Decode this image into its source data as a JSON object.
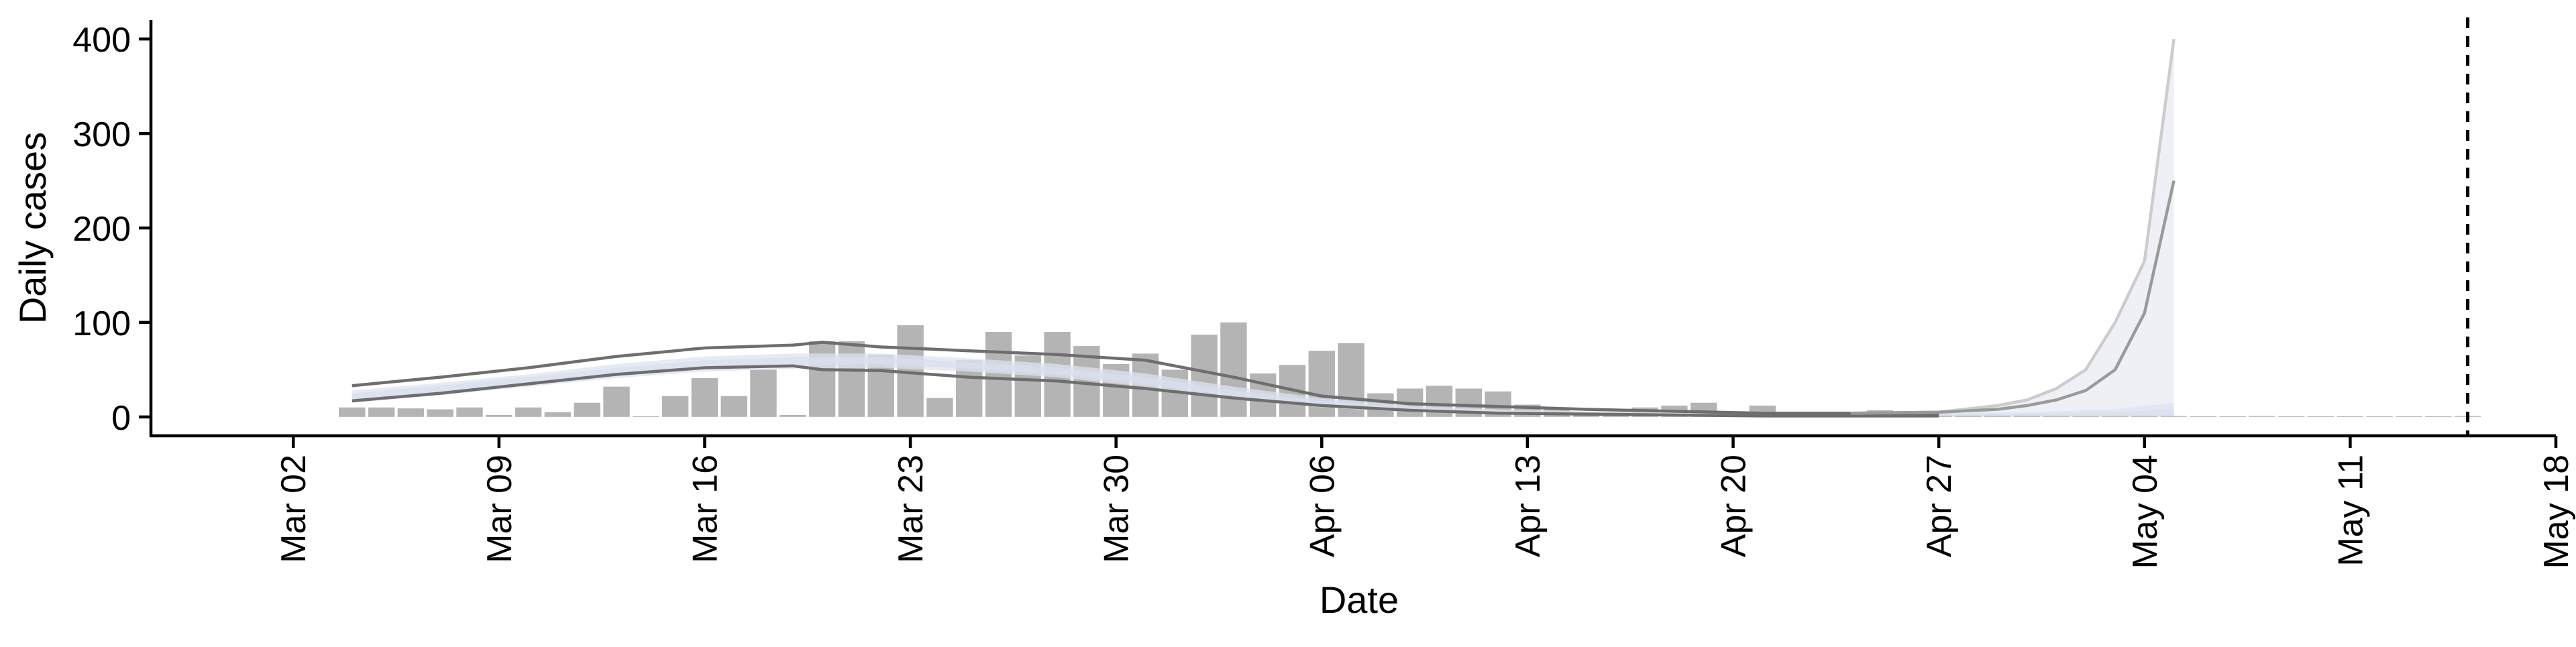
{
  "chart_data": {
    "type": "bar",
    "xlabel": "Date",
    "ylabel": "Daily cases",
    "ylim": [
      -20,
      420
    ],
    "y_ticks": [
      0,
      100,
      200,
      300,
      400
    ],
    "x_range": [
      "2020-02-27",
      "2020-05-18"
    ],
    "x_ticks": [
      {
        "date": "2020-03-02",
        "label": "Mar 02"
      },
      {
        "date": "2020-03-09",
        "label": "Mar 09"
      },
      {
        "date": "2020-03-16",
        "label": "Mar 16"
      },
      {
        "date": "2020-03-23",
        "label": "Mar 23"
      },
      {
        "date": "2020-03-30",
        "label": "Mar 30"
      },
      {
        "date": "2020-04-06",
        "label": "Apr 06"
      },
      {
        "date": "2020-04-13",
        "label": "Apr 13"
      },
      {
        "date": "2020-04-20",
        "label": "Apr 20"
      },
      {
        "date": "2020-04-27",
        "label": "Apr 27"
      },
      {
        "date": "2020-05-04",
        "label": "May 04"
      },
      {
        "date": "2020-05-11",
        "label": "May 11"
      },
      {
        "date": "2020-05-18",
        "label": "May 18"
      }
    ],
    "bars": {
      "color": "#b4b4b4",
      "x": [
        "2020-03-04",
        "2020-03-05",
        "2020-03-06",
        "2020-03-07",
        "2020-03-08",
        "2020-03-09",
        "2020-03-10",
        "2020-03-11",
        "2020-03-12",
        "2020-03-13",
        "2020-03-14",
        "2020-03-15",
        "2020-03-16",
        "2020-03-17",
        "2020-03-18",
        "2020-03-19",
        "2020-03-20",
        "2020-03-21",
        "2020-03-22",
        "2020-03-23",
        "2020-03-24",
        "2020-03-25",
        "2020-03-26",
        "2020-03-27",
        "2020-03-28",
        "2020-03-29",
        "2020-03-30",
        "2020-03-31",
        "2020-04-01",
        "2020-04-02",
        "2020-04-03",
        "2020-04-04",
        "2020-04-05",
        "2020-04-06",
        "2020-04-07",
        "2020-04-08",
        "2020-04-09",
        "2020-04-10",
        "2020-04-11",
        "2020-04-12",
        "2020-04-13",
        "2020-04-14",
        "2020-04-15",
        "2020-04-16",
        "2020-04-17",
        "2020-04-18",
        "2020-04-19",
        "2020-04-20",
        "2020-04-21",
        "2020-04-22",
        "2020-04-23",
        "2020-04-24",
        "2020-04-25",
        "2020-04-26",
        "2020-04-27",
        "2020-04-28",
        "2020-04-29",
        "2020-04-30",
        "2020-05-01",
        "2020-05-02",
        "2020-05-03",
        "2020-05-04",
        "2020-05-05",
        "2020-05-06",
        "2020-05-07",
        "2020-05-08",
        "2020-05-09",
        "2020-05-10",
        "2020-05-11",
        "2020-05-12",
        "2020-05-13",
        "2020-05-14",
        "2020-05-15"
      ],
      "values": [
        10,
        10,
        9,
        8,
        10,
        2,
        10,
        5,
        15,
        32,
        0,
        22,
        41,
        22,
        50,
        2,
        80,
        80,
        66,
        97,
        20,
        60,
        90,
        65,
        90,
        75,
        56,
        67,
        50,
        87,
        100,
        46,
        55,
        70,
        78,
        25,
        30,
        33,
        30,
        27,
        13,
        10,
        5,
        5,
        10,
        12,
        15,
        5,
        12,
        5,
        5,
        5,
        7,
        3,
        3,
        2,
        2,
        3,
        1,
        1,
        1,
        1,
        1,
        0,
        0,
        1,
        0,
        0,
        0,
        0,
        0,
        0,
        1
      ]
    },
    "bands": [
      {
        "color": "#c9d2e6",
        "x": [
          "2020-03-04",
          "2020-03-07",
          "2020-03-10",
          "2020-03-13",
          "2020-03-16",
          "2020-03-19",
          "2020-03-22",
          "2020-03-25",
          "2020-03-28",
          "2020-03-31",
          "2020-04-03",
          "2020-04-06",
          "2020-04-09",
          "2020-04-12",
          "2020-04-15",
          "2020-04-18",
          "2020-04-21",
          "2020-04-24",
          "2020-04-27",
          "2020-04-30",
          "2020-05-03",
          "2020-05-05"
        ],
        "upper": [
          25,
          33,
          42,
          52,
          60,
          63,
          63,
          58,
          52,
          42,
          28,
          17,
          10,
          7,
          5,
          4,
          3,
          3,
          3,
          3,
          5,
          8
        ],
        "lower": [
          18,
          26,
          35,
          44,
          52,
          55,
          56,
          51,
          45,
          35,
          22,
          12,
          7,
          4,
          3,
          2,
          2,
          1,
          1,
          1,
          1,
          1
        ]
      },
      {
        "color": "#dde3ef",
        "x": [
          "2020-03-04",
          "2020-03-07",
          "2020-03-10",
          "2020-03-13",
          "2020-03-16",
          "2020-03-19",
          "2020-03-22",
          "2020-03-25",
          "2020-03-28",
          "2020-03-31",
          "2020-04-03",
          "2020-04-06",
          "2020-04-09",
          "2020-04-12",
          "2020-04-15",
          "2020-04-18",
          "2020-04-21",
          "2020-04-24",
          "2020-04-27",
          "2020-04-30",
          "2020-05-03",
          "2020-05-05"
        ],
        "upper": [
          28,
          36,
          45,
          56,
          64,
          67,
          67,
          62,
          56,
          46,
          32,
          20,
          12,
          8,
          6,
          5,
          4,
          4,
          4,
          5,
          8,
          15
        ],
        "lower": [
          15,
          23,
          32,
          41,
          48,
          51,
          52,
          48,
          42,
          32,
          19,
          10,
          5,
          3,
          2,
          1,
          1,
          1,
          1,
          1,
          1,
          1
        ]
      }
    ],
    "forecast_band": {
      "color": "#eef0f6",
      "x": [
        "2020-04-27",
        "2020-04-28",
        "2020-04-29",
        "2020-04-30",
        "2020-05-01",
        "2020-05-02",
        "2020-05-03",
        "2020-05-04",
        "2020-05-05"
      ],
      "upper": [
        4,
        8,
        12,
        18,
        30,
        50,
        100,
        165,
        400
      ],
      "lower": [
        0,
        0,
        0,
        0,
        0,
        0,
        0,
        0,
        0
      ]
    },
    "lines": [
      {
        "color": "#6e6e6e",
        "x": [
          "2020-03-04",
          "2020-03-07",
          "2020-03-10",
          "2020-03-13",
          "2020-03-16",
          "2020-03-19",
          "2020-03-20",
          "2020-03-22",
          "2020-03-25",
          "2020-03-28",
          "2020-03-31",
          "2020-04-03",
          "2020-04-06",
          "2020-04-09",
          "2020-04-12",
          "2020-04-15",
          "2020-04-18",
          "2020-04-21",
          "2020-04-24",
          "2020-04-27"
        ],
        "values": [
          33,
          42,
          52,
          64,
          73,
          76,
          79,
          74,
          70,
          66,
          60,
          42,
          22,
          14,
          11,
          8,
          6,
          4,
          4,
          4
        ]
      },
      {
        "color": "#6e6e6e",
        "x": [
          "2020-03-04",
          "2020-03-07",
          "2020-03-10",
          "2020-03-13",
          "2020-03-16",
          "2020-03-19",
          "2020-03-20",
          "2020-03-22",
          "2020-03-25",
          "2020-03-28",
          "2020-03-31",
          "2020-04-03",
          "2020-04-06",
          "2020-04-09",
          "2020-04-12",
          "2020-04-15",
          "2020-04-18",
          "2020-04-21",
          "2020-04-24",
          "2020-04-27"
        ],
        "values": [
          17,
          25,
          35,
          45,
          52,
          54,
          50,
          49,
          42,
          38,
          30,
          20,
          12,
          7,
          4,
          3,
          2,
          1,
          1,
          1
        ]
      },
      {
        "color": "#cccccc",
        "x": [
          "2020-04-24",
          "2020-04-27",
          "2020-04-29",
          "2020-04-30",
          "2020-05-01",
          "2020-05-02",
          "2020-05-03",
          "2020-05-04",
          "2020-05-05"
        ],
        "values": [
          4,
          5,
          12,
          18,
          30,
          50,
          100,
          165,
          400
        ]
      },
      {
        "color": "#9a9a9a",
        "x": [
          "2020-04-24",
          "2020-04-27",
          "2020-04-29",
          "2020-04-30",
          "2020-05-01",
          "2020-05-02",
          "2020-05-03",
          "2020-05-04",
          "2020-05-05"
        ],
        "values": [
          4,
          5,
          8,
          12,
          18,
          28,
          50,
          110,
          250
        ]
      }
    ],
    "vline": {
      "date": "2020-05-15",
      "style": "dashed",
      "color": "#000000"
    },
    "grid": false,
    "legend": "none"
  }
}
